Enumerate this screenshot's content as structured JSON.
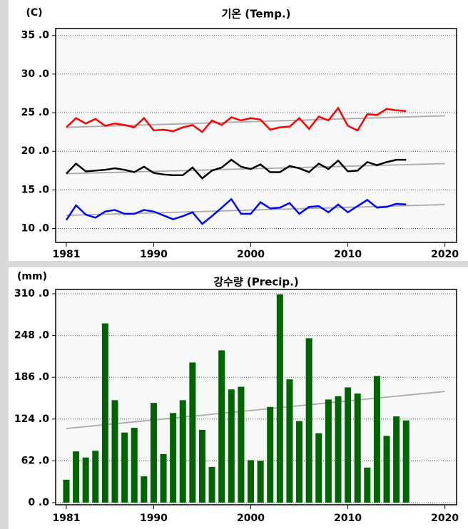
{
  "chart_data": [
    {
      "type": "line",
      "title": "기온 (Temp.)",
      "y_label": "(C)",
      "x": [
        1981,
        1982,
        1983,
        1984,
        1985,
        1986,
        1987,
        1988,
        1989,
        1990,
        1991,
        1992,
        1993,
        1994,
        1995,
        1996,
        1997,
        1998,
        1999,
        2000,
        2001,
        2002,
        2003,
        2004,
        2005,
        2006,
        2007,
        2008,
        2009,
        2010,
        2011,
        2012,
        2013,
        2014,
        2015,
        2016
      ],
      "series": [
        {
          "color": "#ff0000",
          "values": [
            23.1,
            24.3,
            23.6,
            24.2,
            23.3,
            23.6,
            23.4,
            23.1,
            24.3,
            22.7,
            22.8,
            22.6,
            23.1,
            23.4,
            22.5,
            24.0,
            23.4,
            24.4,
            24.0,
            24.3,
            24.1,
            22.8,
            23.1,
            23.2,
            24.3,
            22.9,
            24.5,
            24.0,
            25.6,
            23.3,
            22.7,
            24.8,
            24.7,
            25.5,
            25.3,
            25.2
          ]
        },
        {
          "color": "#000000",
          "values": [
            17.1,
            18.4,
            17.4,
            17.5,
            17.6,
            17.8,
            17.6,
            17.3,
            18.0,
            17.2,
            17.0,
            16.9,
            16.9,
            17.9,
            16.5,
            17.5,
            17.9,
            18.9,
            18.0,
            17.7,
            18.3,
            17.3,
            17.3,
            18.1,
            17.8,
            17.3,
            18.4,
            17.7,
            18.8,
            17.4,
            17.5,
            18.6,
            18.2,
            18.6,
            18.9,
            18.9
          ]
        },
        {
          "color": "#0000ff",
          "values": [
            11.1,
            13.0,
            11.8,
            11.4,
            12.2,
            12.4,
            11.9,
            11.9,
            12.4,
            12.2,
            11.7,
            11.2,
            11.6,
            12.1,
            10.6,
            11.6,
            12.7,
            13.8,
            11.9,
            11.9,
            13.4,
            12.6,
            12.7,
            13.3,
            11.9,
            12.8,
            12.9,
            12.1,
            13.1,
            12.1,
            12.9,
            13.7,
            12.7,
            12.8,
            13.2,
            13.1
          ]
        }
      ],
      "trends": [
        {
          "color": "#aaaaaa",
          "x": [
            1981,
            2020
          ],
          "values": [
            23.1,
            24.6
          ]
        },
        {
          "color": "#aaaaaa",
          "x": [
            1981,
            2020
          ],
          "values": [
            17.1,
            18.4
          ]
        },
        {
          "color": "#aaaaaa",
          "x": [
            1981,
            2020
          ],
          "values": [
            11.7,
            13.1
          ]
        }
      ],
      "xlim": [
        1979.9,
        2021.2
      ],
      "xticks": [
        1981,
        1990,
        2000,
        2010,
        2020
      ],
      "ylim": [
        8.2,
        35.9
      ],
      "yticks": [
        {
          "value": 10,
          "label": "10 .0"
        },
        {
          "value": 15,
          "label": "15 .0"
        },
        {
          "value": 20,
          "label": "20 .0"
        },
        {
          "value": 25,
          "label": "25 .0"
        },
        {
          "value": 30,
          "label": "30 .0"
        },
        {
          "value": 35,
          "label": "35 .0"
        }
      ],
      "grid": true
    },
    {
      "type": "bar",
      "title": "강수량 (Precip.)",
      "y_label": "(mm)",
      "x": [
        1981,
        1982,
        1983,
        1984,
        1985,
        1986,
        1987,
        1988,
        1989,
        1990,
        1991,
        1992,
        1993,
        1994,
        1995,
        1996,
        1997,
        1998,
        1999,
        2000,
        2001,
        2002,
        2003,
        2004,
        2005,
        2006,
        2007,
        2008,
        2009,
        2010,
        2011,
        2012,
        2013,
        2014,
        2015,
        2016
      ],
      "series": [
        {
          "color": "#006400",
          "values": [
            34,
            76,
            67,
            77,
            266,
            152,
            104,
            111,
            39,
            148,
            72,
            133,
            152,
            208,
            108,
            53,
            226,
            168,
            172,
            63,
            62,
            142,
            309,
            183,
            121,
            244,
            103,
            153,
            158,
            171,
            162,
            52,
            188,
            99,
            128,
            122
          ]
        }
      ],
      "trends": [
        {
          "color": "#aaaaaa",
          "x": [
            1981,
            2020
          ],
          "values": [
            110,
            165
          ]
        }
      ],
      "xlim": [
        1979.9,
        2021.2
      ],
      "xticks": [
        1981,
        1990,
        2000,
        2010,
        2020
      ],
      "ylim": [
        -3.2,
        316.4
      ],
      "yticks": [
        {
          "value": 0,
          "label": "0 .0"
        },
        {
          "value": 62,
          "label": "62 .0"
        },
        {
          "value": 124,
          "label": "124 .0"
        },
        {
          "value": 186,
          "label": "186 .0"
        },
        {
          "value": 248,
          "label": "248 .0"
        },
        {
          "value": 310,
          "label": "310 .0"
        }
      ],
      "grid": true
    }
  ]
}
